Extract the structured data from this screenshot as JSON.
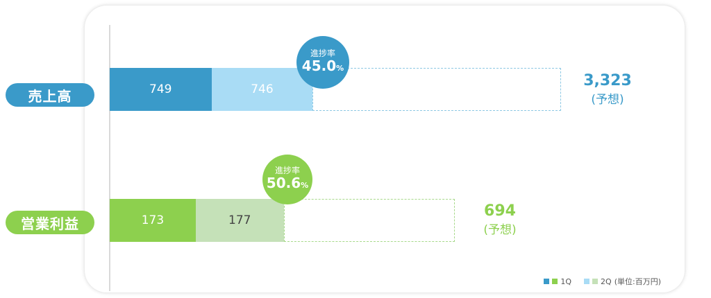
{
  "chart_data": {
    "type": "bar",
    "stacked": true,
    "orientation": "horizontal",
    "categories": [
      "売上高",
      "営業利益"
    ],
    "series": [
      {
        "name": "1Q",
        "values": [
          749,
          173
        ]
      },
      {
        "name": "2Q",
        "values": [
          746,
          177
        ]
      }
    ],
    "forecast": [
      3323,
      694
    ],
    "forecast_values_text": [
      "3,323",
      "694"
    ],
    "forecast_label": "(予想)",
    "progress_caption": "進捗率",
    "progress": [
      {
        "value": "45.0",
        "unit": "%"
      },
      {
        "value": "50.6",
        "unit": "%"
      }
    ],
    "colors": {
      "sales": {
        "q1": "#3a9ac9",
        "q2": "#a9dcf5",
        "accent": "#3a9ac9"
      },
      "profit": {
        "q1": "#8dd04e",
        "q2": "#c5e1b8",
        "accent": "#8dd04e"
      }
    },
    "legend": {
      "q1": "1Q",
      "q2": "2Q",
      "unit": "(単位:百万円)"
    }
  }
}
